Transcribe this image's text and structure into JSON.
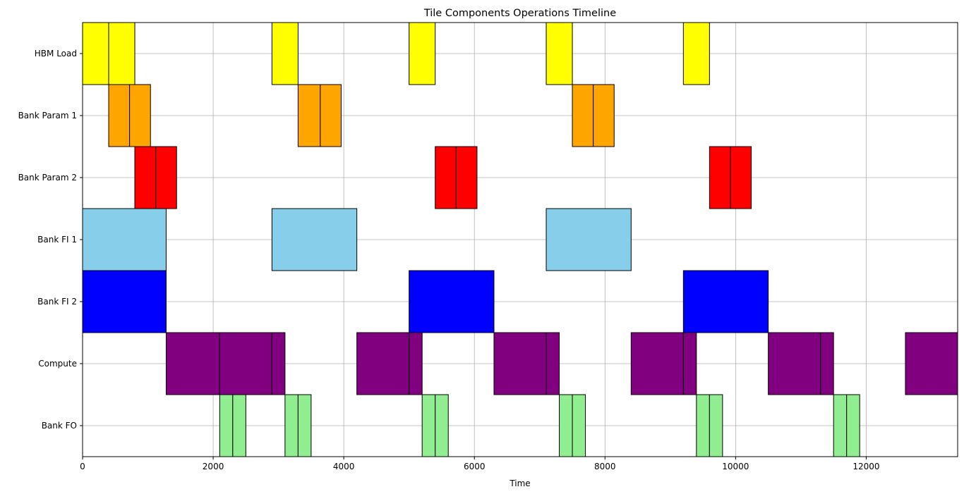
{
  "chart_data": {
    "type": "timeline",
    "title": "Tile Components Operations Timeline",
    "xlabel": "Time",
    "ylabel": "",
    "xlim": [
      0,
      13400
    ],
    "x_ticks": [
      0,
      2000,
      4000,
      6000,
      8000,
      10000,
      12000
    ],
    "grid": true,
    "rows": [
      {
        "name": "HBM Load",
        "color": "#ffff00",
        "bars": [
          [
            0,
            400
          ],
          [
            400,
            800
          ],
          [
            2900,
            3300
          ],
          [
            5000,
            5400
          ],
          [
            7100,
            7500
          ],
          [
            9200,
            9600
          ]
        ]
      },
      {
        "name": "Bank Param 1",
        "color": "#ffa500",
        "bars": [
          [
            400,
            720
          ],
          [
            720,
            1040
          ],
          [
            3300,
            3640
          ],
          [
            3640,
            3960
          ],
          [
            7500,
            7820
          ],
          [
            7820,
            8140
          ]
        ]
      },
      {
        "name": "Bank Param 2",
        "color": "#ff0000",
        "bars": [
          [
            800,
            1120
          ],
          [
            1120,
            1440
          ],
          [
            5400,
            5720
          ],
          [
            5720,
            6040
          ],
          [
            9600,
            9920
          ],
          [
            9920,
            10240
          ]
        ]
      },
      {
        "name": "Bank FI 1",
        "color": "#87ceeb",
        "bars": [
          [
            0,
            1280
          ],
          [
            2900,
            4200
          ],
          [
            7100,
            8400
          ]
        ]
      },
      {
        "name": "Bank FI 2",
        "color": "#0000ff",
        "bars": [
          [
            0,
            1280
          ],
          [
            5000,
            6300
          ],
          [
            9200,
            10500
          ]
        ]
      },
      {
        "name": "Compute",
        "color": "#800080",
        "bars": [
          [
            1280,
            2100
          ],
          [
            2100,
            2900
          ],
          [
            2900,
            3100
          ],
          [
            4200,
            5000
          ],
          [
            5000,
            5200
          ],
          [
            6300,
            7100
          ],
          [
            7100,
            7300
          ],
          [
            8400,
            9200
          ],
          [
            9200,
            9400
          ],
          [
            10500,
            11300
          ],
          [
            11300,
            11500
          ],
          [
            12600,
            13400
          ]
        ]
      },
      {
        "name": "Bank FO",
        "color": "#90ee90",
        "bars": [
          [
            2100,
            2300
          ],
          [
            2300,
            2500
          ],
          [
            3100,
            3300
          ],
          [
            3300,
            3500
          ],
          [
            5200,
            5400
          ],
          [
            5400,
            5600
          ],
          [
            7300,
            7500
          ],
          [
            7500,
            7700
          ],
          [
            9400,
            9600
          ],
          [
            9600,
            9800
          ],
          [
            11500,
            11700
          ],
          [
            11700,
            11900
          ]
        ]
      }
    ]
  }
}
